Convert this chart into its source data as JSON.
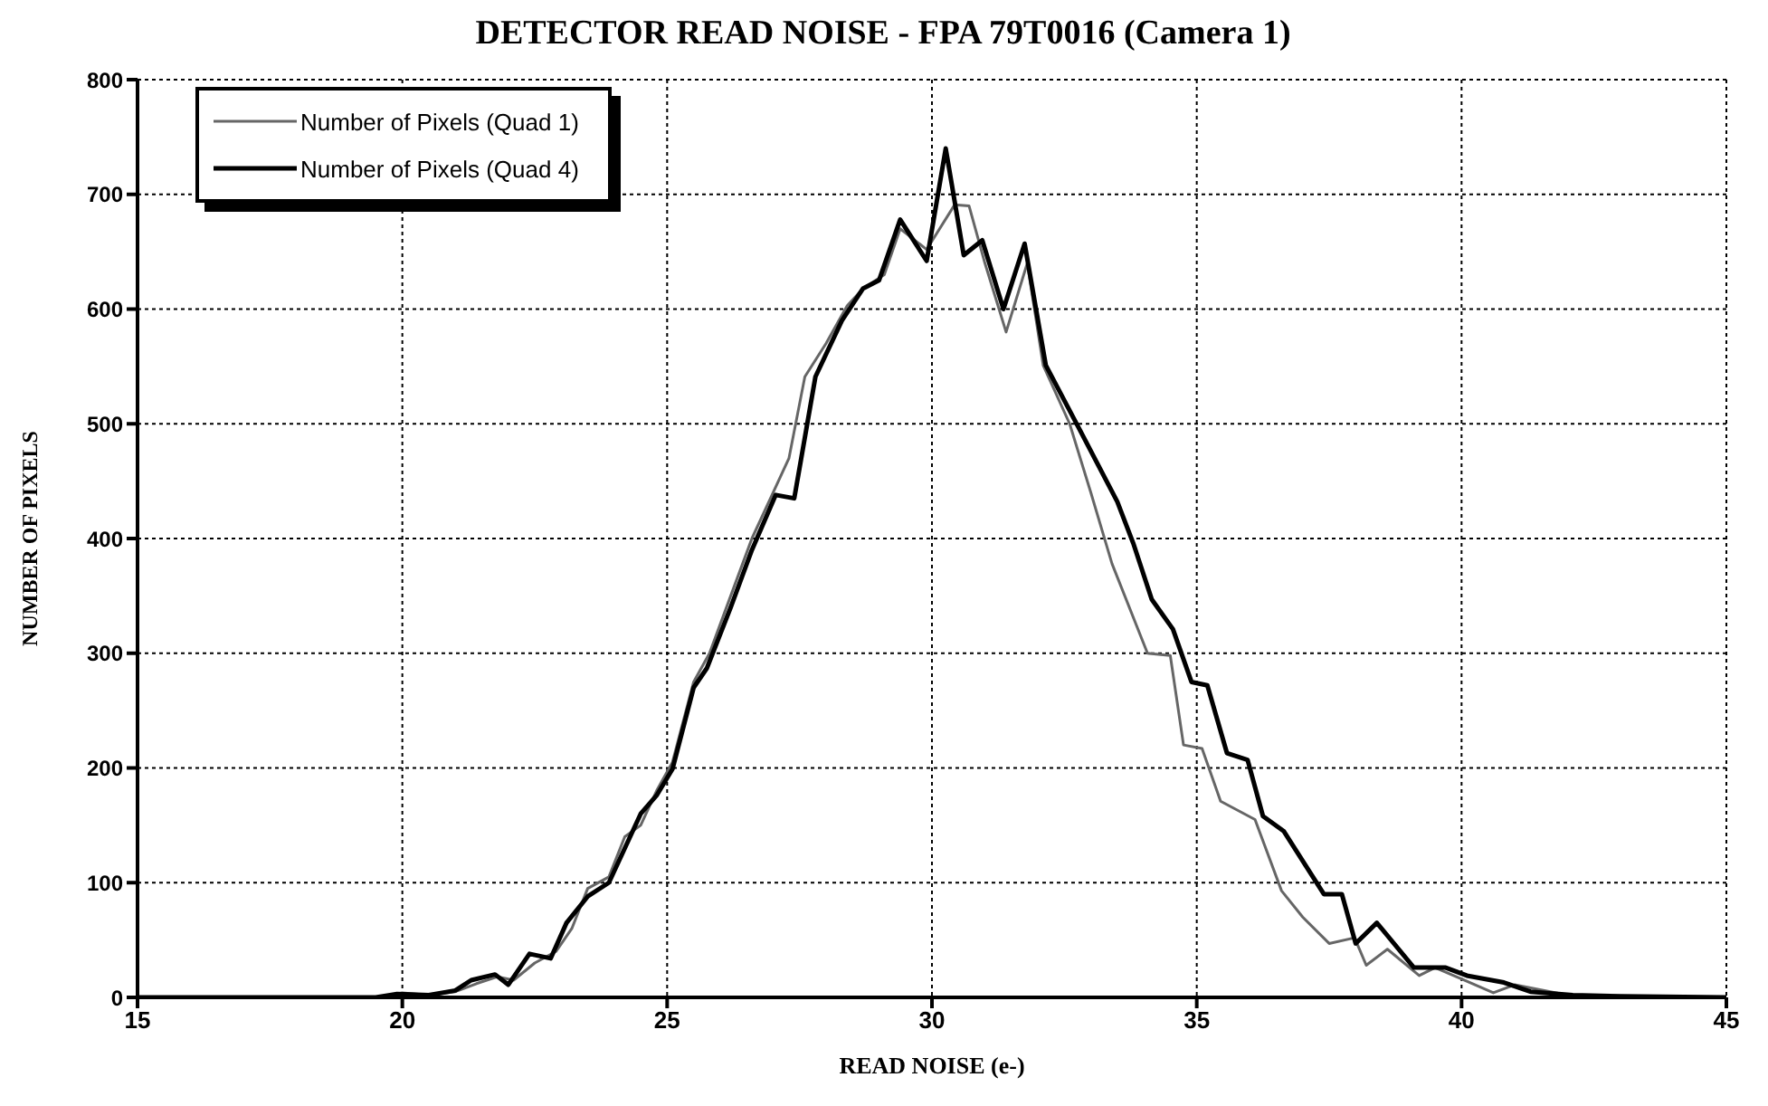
{
  "chart_data": {
    "type": "line",
    "title": "DETECTOR READ NOISE - FPA 79T0016 (Camera 1)",
    "xlabel": "READ NOISE (e-)",
    "ylabel": "NUMBER OF PIXELS",
    "xlim": [
      15,
      45
    ],
    "xticks": [
      15,
      20,
      25,
      30,
      35,
      40,
      45
    ],
    "ylim": [
      0,
      800
    ],
    "yticks": [
      0,
      100,
      200,
      300,
      400,
      500,
      600,
      700,
      800
    ],
    "grid": true,
    "legend": "top left",
    "marker": "none",
    "line_style": "solid",
    "series": [
      {
        "name": "Number of Pixels (Quad 1)",
        "color": "#666666",
        "x": [
          15,
          19.6,
          20,
          20.5,
          21,
          21.4,
          21.8,
          22.1,
          22.5,
          22.9,
          23.2,
          23.5,
          23.9,
          24.2,
          24.5,
          24.8,
          25.1,
          25.5,
          25.8,
          26.2,
          26.6,
          27.0,
          27.3,
          27.6,
          28.0,
          28.4,
          28.7,
          29.1,
          29.4,
          29.9,
          30.43,
          30.7,
          31.0,
          31.4,
          31.8,
          32.1,
          32.6,
          33.0,
          33.4,
          34.07,
          34.5,
          34.75,
          35.1,
          35.45,
          36.1,
          36.6,
          37.0,
          37.5,
          37.98,
          38.2,
          38.6,
          39.2,
          39.5,
          40.0,
          40.6,
          41.0,
          42,
          43,
          45
        ],
        "values": [
          0,
          0,
          4,
          2,
          5,
          12,
          18,
          15,
          30,
          40,
          60,
          95,
          105,
          140,
          150,
          180,
          205,
          275,
          300,
          350,
          400,
          440,
          470,
          541,
          570,
          603,
          618,
          630,
          670,
          652,
          691,
          690,
          640,
          580,
          640,
          551,
          500,
          440,
          378,
          300,
          298,
          220,
          217,
          171,
          155,
          93,
          70,
          47,
          52,
          28,
          42,
          19,
          26,
          16,
          4,
          11,
          2,
          0,
          0
        ]
      },
      {
        "name": "Number of Pixels (Quad 4)",
        "color": "#000000",
        "x": [
          15,
          19.5,
          19.9,
          20.5,
          21,
          21.3,
          21.75,
          22,
          22.4,
          22.8,
          23.1,
          23.5,
          23.9,
          24.2,
          24.5,
          24.8,
          25.1,
          25.5,
          25.75,
          26.2,
          26.6,
          27.05,
          27.4,
          27.8,
          28.3,
          28.7,
          29.0,
          29.4,
          29.9,
          30.26,
          30.6,
          30.95,
          31.35,
          31.75,
          32.15,
          32.8,
          33.5,
          33.8,
          34.15,
          34.55,
          34.9,
          35.2,
          35.57,
          35.96,
          36.25,
          36.64,
          37.4,
          37.74,
          38.0,
          38.4,
          39.1,
          39.7,
          40.1,
          40.8,
          41.3,
          42.1,
          43,
          45
        ],
        "values": [
          0,
          0,
          3,
          2,
          6,
          15,
          20,
          11,
          38,
          34,
          65,
          88,
          100,
          130,
          160,
          176,
          199,
          270,
          287,
          340,
          390,
          438,
          435,
          541,
          590,
          618,
          625,
          678,
          642,
          740,
          647,
          660,
          600,
          657,
          551,
          494,
          432,
          396,
          347,
          321,
          275,
          272,
          213,
          207,
          158,
          145,
          90,
          90,
          47,
          65,
          26,
          26,
          19,
          13,
          5,
          2,
          1,
          0
        ]
      }
    ]
  }
}
